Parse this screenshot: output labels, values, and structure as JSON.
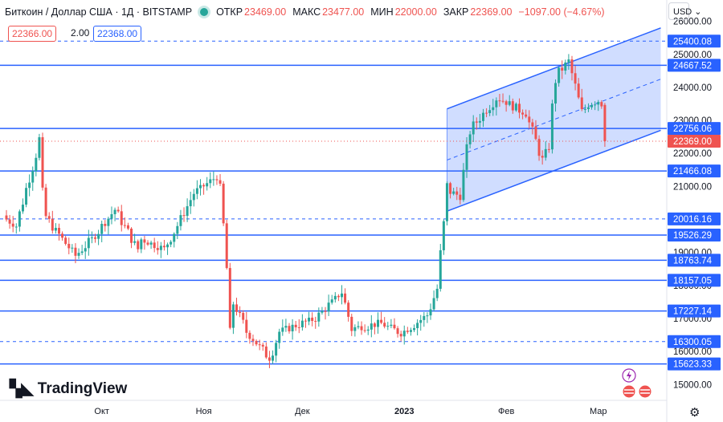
{
  "header": {
    "symbol": "Биткоин / Доллар США · 1Д · BITSTAMP",
    "open_label": "ОТКР",
    "open_value": "23469.00",
    "high_label": "МАКС",
    "high_value": "23477.00",
    "low_label": "МИН",
    "low_value": "22000.00",
    "close_label": "ЗАКР",
    "close_value": "22369.00",
    "change_value": "−1097.00 (−4.67%)"
  },
  "trade": {
    "sell": "22366.00",
    "spread": "2.00",
    "buy": "22368.00"
  },
  "currency_label": "USD",
  "logo_text": "TradingView",
  "colors": {
    "up": "#26a69a",
    "down": "#ef5350",
    "level": "#2962ff",
    "last": "#ef5350",
    "channel_fill": "#2962ff"
  },
  "chart_data": {
    "type": "candlestick",
    "ylim": [
      14500,
      26500
    ],
    "y_ticks": [
      15000,
      16000,
      17000,
      18000,
      19000,
      20000,
      21000,
      22000,
      23000,
      24000,
      25000,
      26000
    ],
    "x_ticks": [
      {
        "label": "Окт",
        "date": "2022-10-01"
      },
      {
        "label": "Ноя",
        "date": "2022-11-01"
      },
      {
        "label": "Дек",
        "date": "2022-12-01"
      },
      {
        "label": "2023",
        "date": "2023-01-01"
      },
      {
        "label": "Фев",
        "date": "2023-02-01"
      },
      {
        "label": "Мар",
        "date": "2023-03-01"
      }
    ],
    "start_date": "2022-09-02",
    "last_price": 22369.0,
    "levels": [
      {
        "value": 25400.08,
        "style": "dashed"
      },
      {
        "value": 24667.52,
        "style": "solid"
      },
      {
        "value": 22756.06,
        "style": "solid"
      },
      {
        "value": 21466.08,
        "style": "solid"
      },
      {
        "value": 20016.16,
        "style": "dashed"
      },
      {
        "value": 19526.29,
        "style": "solid"
      },
      {
        "value": 18763.74,
        "style": "solid"
      },
      {
        "value": 18157.05,
        "style": "solid"
      },
      {
        "value": 17227.14,
        "style": "solid"
      },
      {
        "value": 16300.05,
        "style": "dashed"
      },
      {
        "value": 15623.33,
        "style": "solid"
      }
    ],
    "channel": {
      "lower": [
        {
          "date": "2023-01-14",
          "value": 20250
        },
        {
          "date": "2023-03-20",
          "value": 22700
        }
      ],
      "upper": [
        {
          "date": "2023-01-14",
          "value": 23350
        },
        {
          "date": "2023-03-20",
          "value": 25800
        }
      ]
    },
    "anchors": [
      [
        "2022-09-02",
        20000
      ],
      [
        "2022-09-05",
        19800
      ],
      [
        "2022-09-09",
        21300
      ],
      [
        "2022-09-12",
        22400
      ],
      [
        "2022-09-13",
        20200
      ],
      [
        "2022-09-19",
        19400
      ],
      [
        "2022-09-23",
        18900
      ],
      [
        "2022-09-28",
        19400
      ],
      [
        "2022-10-05",
        20300
      ],
      [
        "2022-10-12",
        19100
      ],
      [
        "2022-10-13",
        19400
      ],
      [
        "2022-10-20",
        19100
      ],
      [
        "2022-10-25",
        20000
      ],
      [
        "2022-10-29",
        20800
      ],
      [
        "2022-11-05",
        21300
      ],
      [
        "2022-11-06",
        20900
      ],
      [
        "2022-11-08",
        18500
      ],
      [
        "2022-11-09",
        15900
      ],
      [
        "2022-11-10",
        17500
      ],
      [
        "2022-11-14",
        16600
      ],
      [
        "2022-11-21",
        15800
      ],
      [
        "2022-11-24",
        16600
      ],
      [
        "2022-12-05",
        17000
      ],
      [
        "2022-12-13",
        17800
      ],
      [
        "2022-12-16",
        16700
      ],
      [
        "2022-12-25",
        16850
      ],
      [
        "2022-12-31",
        16550
      ],
      [
        "2023-01-08",
        17100
      ],
      [
        "2023-01-11",
        17900
      ],
      [
        "2023-01-13",
        19800
      ],
      [
        "2023-01-14",
        20900
      ],
      [
        "2023-01-18",
        20700
      ],
      [
        "2023-01-21",
        22700
      ],
      [
        "2023-01-29",
        23700
      ],
      [
        "2023-02-02",
        23500
      ],
      [
        "2023-02-07",
        23200
      ],
      [
        "2023-02-12",
        21800
      ],
      [
        "2023-02-14",
        22200
      ],
      [
        "2023-02-16",
        24300
      ],
      [
        "2023-02-20",
        24800
      ],
      [
        "2023-02-24",
        23200
      ],
      [
        "2023-02-26",
        23500
      ],
      [
        "2023-03-01",
        23600
      ],
      [
        "2023-03-02",
        23500
      ],
      [
        "2023-03-03",
        22369
      ]
    ]
  }
}
